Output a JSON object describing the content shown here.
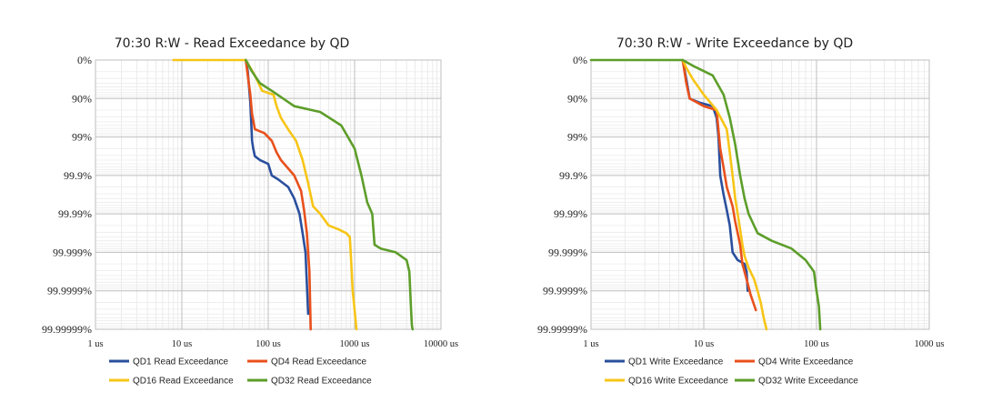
{
  "colors": {
    "QD1": "#2a4f9e",
    "QD4": "#e8501c",
    "QD16": "#f7c516",
    "QD32": "#5d9e2a",
    "grid": "#d4d4d4"
  },
  "chart_data": [
    {
      "type": "line",
      "title": "70:30 R:W - Read Exceedance by QD",
      "x_scale": "log",
      "xlim": [
        "1 us",
        "10000 us"
      ],
      "x_ticks": [
        "1 us",
        "10 us",
        "100 us",
        "1000 us",
        "10000 us"
      ],
      "y_ticks": [
        "0%",
        "90%",
        "99%",
        "99.9%",
        "99.99%",
        "99.999%",
        "99.9999%",
        "99.99999%"
      ],
      "legend_position": "bottom",
      "series": [
        {
          "name": "QD1 Read Exceedance",
          "color": "#2a4f9e",
          "x": [
            55,
            58,
            60,
            62,
            63,
            65,
            67,
            70,
            80,
            100,
            110,
            130,
            170,
            200,
            230,
            250,
            270,
            290
          ],
          "y": [
            0,
            0.3,
            0.7,
            1.1,
            1.4,
            2.1,
            2.3,
            2.5,
            2.6,
            2.7,
            3.0,
            3.1,
            3.3,
            3.6,
            4.0,
            4.5,
            5.0,
            6.6
          ]
        },
        {
          "name": "QD4 Read Exceedance",
          "color": "#e8501c",
          "x": [
            55,
            58,
            62,
            65,
            70,
            90,
            110,
            125,
            140,
            200,
            240,
            260,
            280,
            300,
            310
          ],
          "y": [
            0,
            0.4,
            0.9,
            1.4,
            1.8,
            1.9,
            2.1,
            2.4,
            2.6,
            3.0,
            3.4,
            3.9,
            4.5,
            5.5,
            7.0
          ]
        },
        {
          "name": "QD16 Read Exceedance",
          "color": "#f7c516",
          "x": [
            8,
            13,
            55,
            70,
            85,
            115,
            125,
            140,
            170,
            210,
            250,
            290,
            330,
            400,
            500,
            650,
            800,
            880,
            900,
            950,
            1000,
            1050
          ],
          "y": [
            0,
            0,
            0,
            0.4,
            0.8,
            0.9,
            1.2,
            1.5,
            1.8,
            2.1,
            2.6,
            3.2,
            3.8,
            4.0,
            4.3,
            4.4,
            4.5,
            4.6,
            5.0,
            6.0,
            6.5,
            7.0
          ]
        },
        {
          "name": "QD32 Read Exceedance",
          "color": "#5d9e2a",
          "x": [
            55,
            65,
            80,
            110,
            200,
            400,
            700,
            1000,
            1200,
            1400,
            1600,
            1700,
            2000,
            3000,
            4000,
            4300,
            4500,
            4600,
            4700
          ],
          "y": [
            0,
            0.3,
            0.6,
            0.8,
            1.2,
            1.35,
            1.7,
            2.3,
            3.0,
            3.7,
            4.0,
            4.8,
            4.9,
            5.0,
            5.2,
            5.5,
            6.5,
            6.9,
            7.0
          ]
        }
      ]
    },
    {
      "type": "line",
      "title": "70:30 R:W - Write Exceedance by QD",
      "x_scale": "log",
      "xlim": [
        "1 us",
        "1000 us"
      ],
      "x_ticks": [
        "1 us",
        "10 us",
        "100 us",
        "1000 us"
      ],
      "y_ticks": [
        "0%",
        "90%",
        "99%",
        "99.9%",
        "99.99%",
        "99.999%",
        "99.9999%",
        "99.99999%"
      ],
      "legend_position": "bottom",
      "series": [
        {
          "name": "QD1 Write Exceedance",
          "color": "#2a4f9e",
          "x": [
            6.5,
            7,
            7.5,
            9,
            12,
            13,
            13.5,
            14,
            15,
            16,
            17,
            18,
            20,
            23,
            24,
            24.5
          ],
          "y": [
            0,
            0.5,
            1.0,
            1.1,
            1.2,
            1.5,
            2.0,
            3.0,
            3.5,
            3.9,
            4.3,
            5.0,
            5.2,
            5.3,
            5.5,
            6.0
          ]
        },
        {
          "name": "QD4 Write Exceedance",
          "color": "#e8501c",
          "x": [
            6.5,
            7,
            7.5,
            10,
            13,
            14,
            15,
            16,
            18,
            19,
            20,
            21,
            22,
            24,
            26,
            29
          ],
          "y": [
            0,
            0.6,
            1.0,
            1.2,
            1.3,
            2.3,
            2.8,
            3.3,
            3.8,
            4.2,
            4.5,
            4.8,
            5.3,
            5.7,
            6.1,
            6.5
          ]
        },
        {
          "name": "QD16 Write Exceedance",
          "color": "#f7c516",
          "x": [
            6.5,
            7,
            8,
            10,
            13,
            16,
            17,
            18,
            19,
            20,
            21,
            22,
            23,
            25,
            28,
            30,
            32,
            34,
            36
          ],
          "y": [
            0,
            0.2,
            0.5,
            0.9,
            1.3,
            1.8,
            2.4,
            3.0,
            3.6,
            4.0,
            4.4,
            4.8,
            5.1,
            5.4,
            5.7,
            6.0,
            6.3,
            6.7,
            7.0
          ]
        },
        {
          "name": "QD32 Write Exceedance",
          "color": "#5d9e2a",
          "x": [
            1,
            6.5,
            8,
            12,
            15,
            17,
            19,
            21,
            23,
            25,
            30,
            40,
            60,
            80,
            95,
            100,
            105,
            108
          ],
          "y": [
            0,
            0,
            0.15,
            0.4,
            0.9,
            1.5,
            2.2,
            3.0,
            3.6,
            4.0,
            4.5,
            4.7,
            4.9,
            5.2,
            5.5,
            6.0,
            6.4,
            7.0
          ]
        }
      ]
    }
  ]
}
